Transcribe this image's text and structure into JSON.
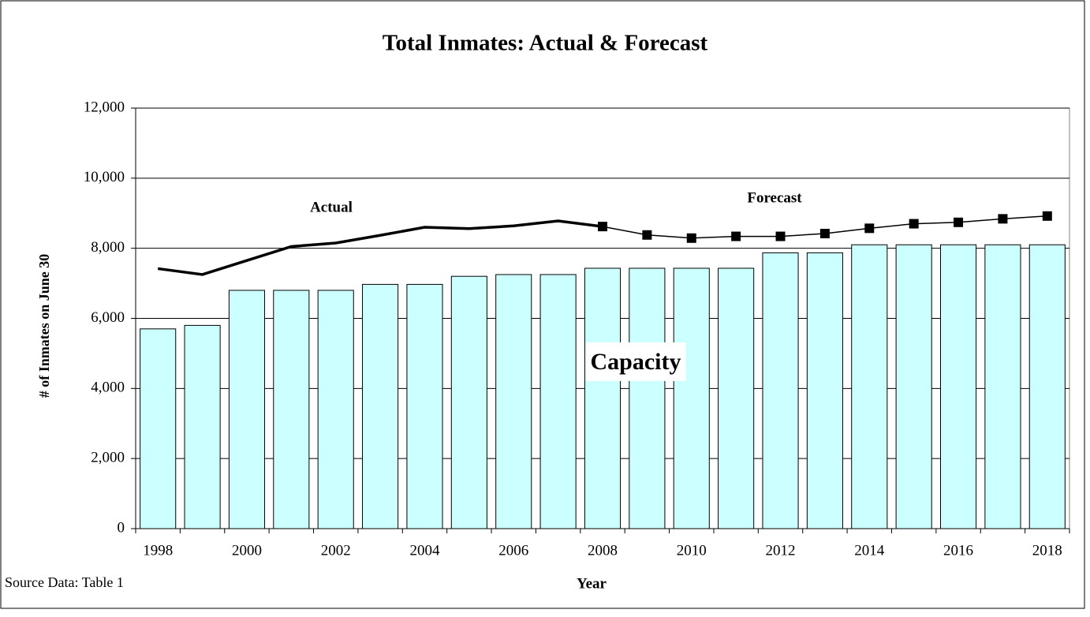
{
  "chart_data": {
    "type": "bar",
    "title": "Total Inmates: Actual & Forecast",
    "x_label": "Year",
    "y_label": "# of Inmates on June 30",
    "source": "Source Data: Table 1",
    "categories": [
      "1998",
      null,
      "2000",
      null,
      "2002",
      null,
      "2004",
      null,
      "2006",
      null,
      "2008",
      null,
      "2010",
      null,
      "2012",
      null,
      "2014",
      null,
      "2016",
      null,
      "2018"
    ],
    "series": [
      {
        "name": "Capacity",
        "type": "bar",
        "color": "#ccffff",
        "values": [
          5700,
          5800,
          6800,
          6800,
          6800,
          6970,
          6970,
          7200,
          7250,
          7250,
          7430,
          7430,
          7430,
          7430,
          7870,
          7870,
          8100,
          8100,
          8100,
          8100,
          8100
        ]
      },
      {
        "name": "Actual",
        "type": "line",
        "color": "#000000",
        "values": [
          7420,
          7250,
          7650,
          8050,
          8150,
          8370,
          8600,
          8560,
          8640,
          8780,
          8620,
          null,
          null,
          null,
          null,
          null,
          null,
          null,
          null,
          null,
          null
        ]
      },
      {
        "name": "Forecast",
        "type": "line",
        "color": "#000000",
        "marker": "square",
        "values": [
          null,
          null,
          null,
          null,
          null,
          null,
          null,
          null,
          null,
          null,
          8620,
          8380,
          8290,
          8340,
          8340,
          8420,
          8570,
          8700,
          8740,
          8840,
          8920
        ]
      }
    ],
    "ylim": [
      0,
      12000
    ],
    "yticks": [
      0,
      {
        "value": 2000,
        "label": "2,000"
      },
      {
        "value": 4000,
        "label": "4,000"
      },
      {
        "value": 6000,
        "label": "6,000"
      },
      {
        "value": 8000,
        "label": "8,000"
      },
      {
        "value": 10000,
        "label": "10,000"
      },
      {
        "value": 12000,
        "label": "12,000"
      }
    ],
    "grid": true
  }
}
